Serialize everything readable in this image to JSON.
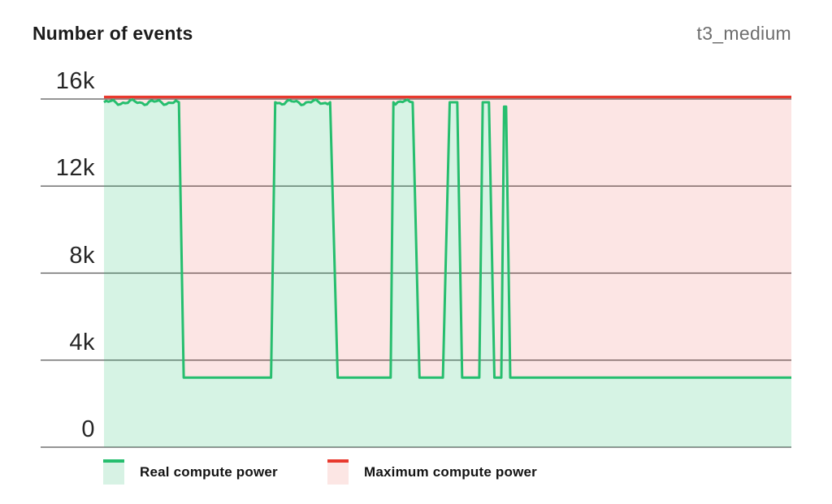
{
  "header": {
    "title": "Number of events",
    "instance_label": "t3_medium"
  },
  "chart_data": {
    "type": "area",
    "title": "Number of events",
    "subtitle": "t3_medium",
    "ylabel": "Number of events",
    "ylim": [
      0,
      16000
    ],
    "grid": true,
    "x_axis": {
      "unit": "percent-of-width",
      "range": [
        0,
        100
      ],
      "tick_labels_visible": false
    },
    "y_ticks": [
      {
        "label": "16k",
        "value": 16000
      },
      {
        "label": "12k",
        "value": 12000
      },
      {
        "label": "8k",
        "value": 8000
      },
      {
        "label": "4k",
        "value": 4000
      },
      {
        "label": "0",
        "value": 0
      }
    ],
    "legend_position": "bottom",
    "series": [
      {
        "name": "Real compute power",
        "type": "step-area",
        "line_color": "#26be6e",
        "fill_color": "rgba(38,190,110,0.19)",
        "points": [
          [
            0,
            15850
          ],
          [
            10.9,
            15850
          ],
          [
            11.6,
            3200
          ],
          [
            24.3,
            3200
          ],
          [
            24.9,
            15850
          ],
          [
            32.9,
            15850
          ],
          [
            34.0,
            3200
          ],
          [
            41.7,
            3200
          ],
          [
            42.1,
            15850
          ],
          [
            44.9,
            15850
          ],
          [
            45.9,
            3200
          ],
          [
            49.3,
            3200
          ],
          [
            50.3,
            15850
          ],
          [
            51.4,
            15850
          ],
          [
            52.1,
            3200
          ],
          [
            54.6,
            3200
          ],
          [
            55.1,
            15850
          ],
          [
            56.0,
            15850
          ],
          [
            56.8,
            3200
          ],
          [
            57.8,
            3200
          ],
          [
            58.2,
            15650
          ],
          [
            58.5,
            15650
          ],
          [
            59.1,
            3200
          ],
          [
            100,
            3200
          ]
        ],
        "top_plateau_value": 15850,
        "low_plateau_value": 3200,
        "noise_on_top_plateaus": true
      },
      {
        "name": "Maximum compute power",
        "type": "line",
        "line_color": "#e8392e",
        "fill_color": "rgba(232,57,46,0.13)",
        "fill_rule": "between-this-line-and-real-compute-series",
        "points": [
          [
            0,
            16000
          ],
          [
            100,
            16000
          ]
        ]
      }
    ]
  },
  "legend": {
    "items": [
      {
        "label": "Real compute power",
        "line_color": "#26be6e",
        "fill_color": "#d7f2e4"
      },
      {
        "label": "Maximum compute power",
        "line_color": "#e8392e",
        "fill_color": "#fce6e4"
      }
    ]
  },
  "colors": {
    "background": "#ffffff",
    "grid_line": "#565656",
    "axis_text": "#262626",
    "title_text": "#1c1c1c",
    "instance_text": "#6e6e6e",
    "real_compute_green": "#26be6e",
    "max_compute_red": "#e8392e"
  }
}
